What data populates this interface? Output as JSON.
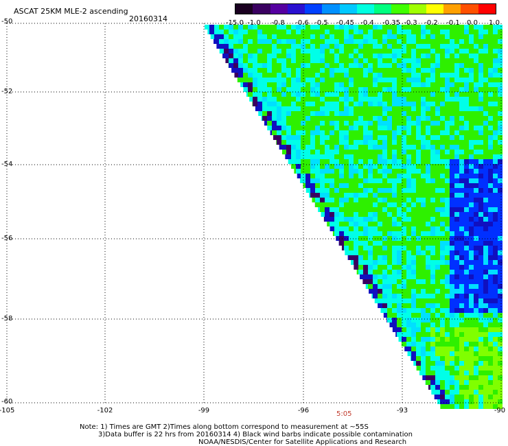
{
  "header": {
    "title": "ASCAT 25KM MLE-2 ascending",
    "date": "20160314"
  },
  "colorbar": {
    "labels": [
      "-15.0",
      "-1.0",
      "-0.8",
      "-0.6",
      "-0.5",
      "-0.45",
      "-0.4",
      "-0.35",
      "-0.3",
      "-0.2",
      "-0.1",
      "0.0",
      "1.0"
    ],
    "colors": [
      "#1a0020",
      "#3a0060",
      "#5500a0",
      "#2a10d0",
      "#0040ff",
      "#0090ff",
      "#00c8ff",
      "#00ffe0",
      "#00ff80",
      "#40ff00",
      "#a0ff00",
      "#ffff00",
      "#ffa000",
      "#ff5000",
      "#ff0000"
    ]
  },
  "map": {
    "lat_labels": [
      "-50",
      "-52",
      "-54",
      "-56",
      "-58",
      "-60"
    ],
    "lon_labels": [
      "-105",
      "-102",
      "-99",
      "-96",
      "-93",
      "-90"
    ],
    "lat_range": [
      -60,
      -50
    ],
    "lon_range": [
      -105,
      -90
    ],
    "grid": "dotted",
    "time_label": "5:05",
    "swath_palette": {
      "green": "#2ef000",
      "lightgreen": "#80ff00",
      "cyan": "#00ffe8",
      "aqua": "#00e0ff",
      "blue": "#0030ff",
      "deepblue": "#1010c0",
      "purple": "#3a0060"
    }
  },
  "footer": {
    "note_line1": "Note: 1) Times are GMT 2)Times along bottom correspond to measurement at ~55S",
    "note_line2": "3)Data buffer is 22 hrs from 20160314 4) Black wind barbs indicate possible contamination",
    "credit": "NOAA/NESDIS/Center for Satellite Applications and Research"
  }
}
